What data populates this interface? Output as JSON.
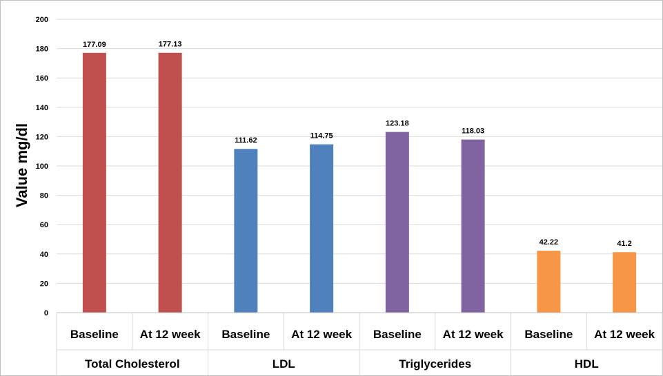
{
  "chart_data": {
    "type": "bar",
    "ylabel": "Value mg/dl",
    "ylim": [
      0,
      200
    ],
    "yticks": [
      0,
      20,
      40,
      60,
      80,
      100,
      120,
      140,
      160,
      180,
      200
    ],
    "grid": true,
    "groups": [
      {
        "label": "Total Cholesterol",
        "color": "#c0504d",
        "bars": [
          {
            "label": "Baseline",
            "value": 177.09,
            "data_label": "177.09"
          },
          {
            "label": "At 12 week",
            "value": 177.13,
            "data_label": "177.13"
          }
        ]
      },
      {
        "label": "LDL",
        "color": "#4f81bd",
        "bars": [
          {
            "label": "Baseline",
            "value": 111.62,
            "data_label": "111.62"
          },
          {
            "label": "At 12 week",
            "value": 114.75,
            "data_label": "114.75"
          }
        ]
      },
      {
        "label": "Triglycerides",
        "color": "#8064a2",
        "bars": [
          {
            "label": "Baseline",
            "value": 123.18,
            "data_label": "123.18"
          },
          {
            "label": "At 12 week",
            "value": 118.03,
            "data_label": "118.03"
          }
        ]
      },
      {
        "label": "HDL",
        "color": "#f79646",
        "bars": [
          {
            "label": "Baseline",
            "value": 42.22,
            "data_label": "42.22"
          },
          {
            "label": "At 12 week",
            "value": 41.2,
            "data_label": "41.2"
          }
        ]
      }
    ]
  }
}
